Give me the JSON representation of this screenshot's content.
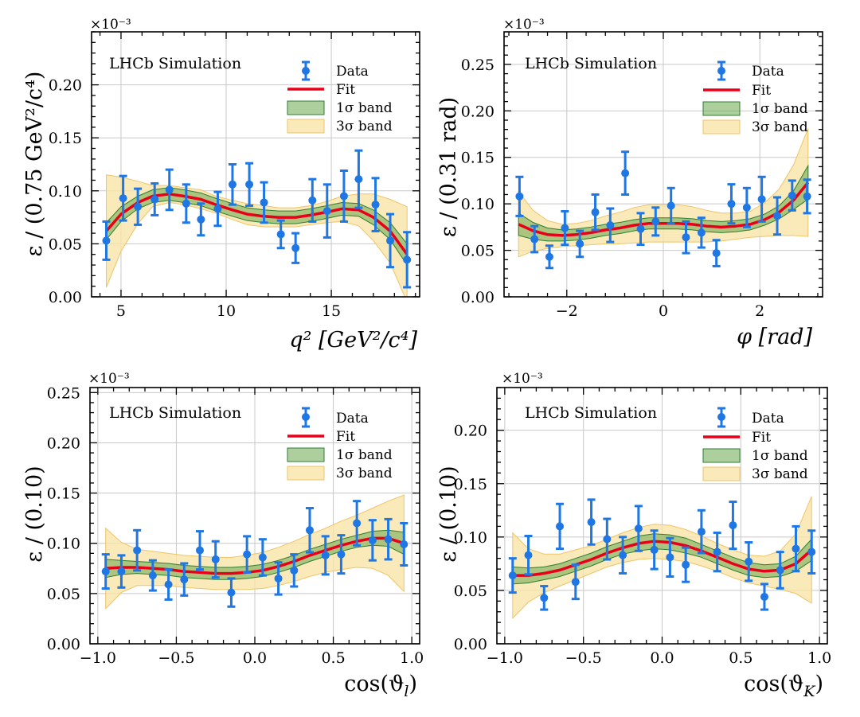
{
  "colors": {
    "data": "#1f77e4",
    "fit": "#e8001a",
    "band1_fill": "#6aa84f",
    "band1_edge": "#2e7d32",
    "band3_fill": "#f9e3a8",
    "band3_edge": "#efc46a",
    "grid": "#c8c8c8"
  },
  "chart_data": [
    {
      "type": "scatter",
      "panel": "top-left",
      "watermark": "LHCb Simulation",
      "sci_label": "×10⁻³",
      "ylabel": "ε / (0.75 GeV²/c⁴)",
      "xlabel": "q² [GeV²/c⁴]",
      "xlim": [
        3.6,
        19.2
      ],
      "ylim": [
        0,
        0.25
      ],
      "xticks": [
        5,
        10,
        15
      ],
      "xtick_labels": [
        "5",
        "10",
        "15"
      ],
      "yticks": [
        0,
        0.05,
        0.1,
        0.15,
        0.2
      ],
      "ytick_labels": [
        "0.00",
        "0.05",
        "0.10",
        "0.15",
        "0.20"
      ],
      "legend": {
        "position": "top-right",
        "entries": [
          "Data",
          "Fit",
          "1σ band",
          "3σ band"
        ]
      },
      "data": {
        "x": [
          4.3,
          5.1,
          5.8,
          6.6,
          7.3,
          8.1,
          8.8,
          9.6,
          10.3,
          11.1,
          11.8,
          12.6,
          13.3,
          14.1,
          14.8,
          15.6,
          16.3,
          17.1,
          17.8,
          18.6
        ],
        "y": [
          0.053,
          0.093,
          0.085,
          0.092,
          0.101,
          0.088,
          0.073,
          0.083,
          0.106,
          0.106,
          0.089,
          0.059,
          0.046,
          0.091,
          0.081,
          0.095,
          0.111,
          0.087,
          0.053,
          0.035
        ],
        "err": [
          0.018,
          0.021,
          0.017,
          0.015,
          0.019,
          0.018,
          0.015,
          0.016,
          0.019,
          0.02,
          0.019,
          0.013,
          0.014,
          0.02,
          0.025,
          0.024,
          0.027,
          0.025,
          0.025,
          0.026
        ]
      },
      "fit": {
        "x": [
          4.3,
          5.0,
          5.8,
          6.5,
          7.3,
          8.0,
          8.8,
          9.5,
          10.3,
          11.0,
          11.8,
          12.5,
          13.3,
          14.0,
          14.8,
          15.5,
          16.3,
          17.0,
          17.8,
          18.6
        ],
        "y": [
          0.062,
          0.078,
          0.089,
          0.095,
          0.097,
          0.095,
          0.092,
          0.087,
          0.082,
          0.078,
          0.076,
          0.075,
          0.075,
          0.077,
          0.08,
          0.083,
          0.082,
          0.075,
          0.062,
          0.04
        ],
        "sigma1": [
          0.008,
          0.007,
          0.006,
          0.006,
          0.006,
          0.006,
          0.006,
          0.006,
          0.006,
          0.006,
          0.006,
          0.006,
          0.006,
          0.006,
          0.006,
          0.006,
          0.006,
          0.007,
          0.008,
          0.01
        ],
        "sigma3": [
          0.053,
          0.035,
          0.02,
          0.01,
          0.008,
          0.008,
          0.009,
          0.008,
          0.009,
          0.01,
          0.01,
          0.009,
          0.009,
          0.009,
          0.01,
          0.012,
          0.015,
          0.022,
          0.03,
          0.045
        ]
      }
    },
    {
      "type": "scatter",
      "panel": "top-right",
      "watermark": "LHCb Simulation",
      "sci_label": "×10⁻³",
      "ylabel": "ε / (0.31 rad)",
      "xlabel": "φ [rad]",
      "xlim": [
        -3.3,
        3.3
      ],
      "ylim": [
        0,
        0.285
      ],
      "xticks": [
        -2,
        0,
        2
      ],
      "xtick_labels": [
        "−2",
        "0",
        "2"
      ],
      "yticks": [
        0,
        0.05,
        0.1,
        0.15,
        0.2,
        0.25
      ],
      "ytick_labels": [
        "0.00",
        "0.05",
        "0.10",
        "0.15",
        "0.20",
        "0.25"
      ],
      "legend": {
        "position": "top-right",
        "entries": [
          "Data",
          "Fit",
          "1σ band",
          "3σ band"
        ]
      },
      "data": {
        "x": [
          -2.98,
          -2.67,
          -2.36,
          -2.04,
          -1.73,
          -1.41,
          -1.1,
          -0.79,
          -0.47,
          -0.16,
          0.16,
          0.47,
          0.79,
          1.1,
          1.41,
          1.73,
          2.04,
          2.36,
          2.67,
          2.98
        ],
        "y": [
          0.108,
          0.062,
          0.043,
          0.074,
          0.057,
          0.091,
          0.077,
          0.133,
          0.073,
          0.081,
          0.098,
          0.064,
          0.069,
          0.047,
          0.1,
          0.096,
          0.105,
          0.087,
          0.109,
          0.108
        ],
        "err": [
          0.021,
          0.014,
          0.012,
          0.018,
          0.014,
          0.019,
          0.018,
          0.023,
          0.017,
          0.015,
          0.019,
          0.017,
          0.016,
          0.014,
          0.021,
          0.021,
          0.024,
          0.02,
          0.016,
          0.018
        ]
      },
      "fit": {
        "x": [
          -3.0,
          -2.7,
          -2.4,
          -2.1,
          -1.8,
          -1.5,
          -1.2,
          -0.9,
          -0.6,
          -0.3,
          0.0,
          0.3,
          0.6,
          0.9,
          1.2,
          1.5,
          1.8,
          2.1,
          2.4,
          2.7,
          3.0
        ],
        "y": [
          0.078,
          0.071,
          0.067,
          0.066,
          0.067,
          0.069,
          0.072,
          0.074,
          0.077,
          0.079,
          0.079,
          0.079,
          0.078,
          0.076,
          0.075,
          0.076,
          0.078,
          0.083,
          0.091,
          0.104,
          0.123
        ],
        "sigma1": [
          0.012,
          0.009,
          0.007,
          0.006,
          0.006,
          0.006,
          0.006,
          0.006,
          0.006,
          0.006,
          0.006,
          0.006,
          0.006,
          0.006,
          0.006,
          0.006,
          0.006,
          0.006,
          0.007,
          0.01,
          0.018
        ],
        "sigma3": [
          0.035,
          0.022,
          0.015,
          0.012,
          0.012,
          0.013,
          0.015,
          0.017,
          0.019,
          0.02,
          0.02,
          0.02,
          0.019,
          0.017,
          0.015,
          0.014,
          0.014,
          0.018,
          0.025,
          0.038,
          0.058
        ]
      }
    },
    {
      "type": "scatter",
      "panel": "bottom-left",
      "watermark": "LHCb Simulation",
      "sci_label": "×10⁻³",
      "ylabel": "ε / (0.10)",
      "xlabel": "cos(ϑ",
      "xlabel_sub": "l",
      "xlabel_close": ")",
      "xlim": [
        -1.05,
        1.05
      ],
      "ylim": [
        0,
        0.255
      ],
      "xticks": [
        -1.0,
        -0.5,
        0.0,
        0.5,
        1.0
      ],
      "xtick_labels": [
        "−1.0",
        "−0.5",
        "0.0",
        "0.5",
        "1.0"
      ],
      "yticks": [
        0,
        0.05,
        0.1,
        0.15,
        0.2,
        0.25
      ],
      "ytick_labels": [
        "0.00",
        "0.05",
        "0.10",
        "0.15",
        "0.20",
        "0.25"
      ],
      "legend": {
        "position": "top-right",
        "entries": [
          "Data",
          "Fit",
          "1σ band",
          "3σ band"
        ]
      },
      "data": {
        "x": [
          -0.95,
          -0.85,
          -0.75,
          -0.65,
          -0.55,
          -0.45,
          -0.35,
          -0.25,
          -0.15,
          -0.05,
          0.05,
          0.15,
          0.25,
          0.35,
          0.45,
          0.55,
          0.65,
          0.75,
          0.85,
          0.95
        ],
        "y": [
          0.072,
          0.072,
          0.093,
          0.068,
          0.059,
          0.064,
          0.093,
          0.084,
          0.051,
          0.089,
          0.086,
          0.065,
          0.073,
          0.113,
          0.088,
          0.089,
          0.12,
          0.103,
          0.104,
          0.099
        ],
        "err": [
          0.017,
          0.016,
          0.02,
          0.015,
          0.015,
          0.016,
          0.019,
          0.018,
          0.014,
          0.018,
          0.018,
          0.016,
          0.016,
          0.022,
          0.019,
          0.019,
          0.022,
          0.02,
          0.02,
          0.021
        ]
      },
      "fit": {
        "x": [
          -0.95,
          -0.85,
          -0.75,
          -0.65,
          -0.55,
          -0.45,
          -0.35,
          -0.25,
          -0.15,
          -0.05,
          0.05,
          0.15,
          0.25,
          0.35,
          0.45,
          0.55,
          0.65,
          0.75,
          0.85,
          0.95
        ],
        "y": [
          0.075,
          0.076,
          0.076,
          0.075,
          0.074,
          0.072,
          0.071,
          0.07,
          0.07,
          0.071,
          0.073,
          0.077,
          0.082,
          0.088,
          0.093,
          0.098,
          0.102,
          0.105,
          0.105,
          0.1
        ],
        "sigma1": [
          0.009,
          0.007,
          0.006,
          0.006,
          0.006,
          0.006,
          0.006,
          0.006,
          0.006,
          0.006,
          0.006,
          0.006,
          0.006,
          0.006,
          0.006,
          0.006,
          0.006,
          0.007,
          0.008,
          0.011
        ],
        "sigma3": [
          0.04,
          0.025,
          0.018,
          0.017,
          0.016,
          0.016,
          0.016,
          0.016,
          0.016,
          0.017,
          0.018,
          0.019,
          0.02,
          0.021,
          0.022,
          0.024,
          0.026,
          0.03,
          0.037,
          0.048
        ]
      }
    },
    {
      "type": "scatter",
      "panel": "bottom-right",
      "watermark": "LHCb Simulation",
      "sci_label": "×10⁻³",
      "ylabel": "ε / (0.10)",
      "xlabel": "cos(ϑ",
      "xlabel_sub": "K",
      "xlabel_close": ")",
      "xlim": [
        -1.05,
        1.05
      ],
      "ylim": [
        0,
        0.24
      ],
      "xticks": [
        -1.0,
        -0.5,
        0.0,
        0.5,
        1.0
      ],
      "xtick_labels": [
        "−1.0",
        "−0.5",
        "0.0",
        "0.5",
        "1.0"
      ],
      "yticks": [
        0,
        0.05,
        0.1,
        0.15,
        0.2
      ],
      "ytick_labels": [
        "0.00",
        "0.05",
        "0.10",
        "0.15",
        "0.20"
      ],
      "legend": {
        "position": "top-right",
        "entries": [
          "Data",
          "Fit",
          "1σ band",
          "3σ band"
        ]
      },
      "data": {
        "x": [
          -0.95,
          -0.85,
          -0.75,
          -0.65,
          -0.55,
          -0.45,
          -0.35,
          -0.25,
          -0.15,
          -0.05,
          0.05,
          0.15,
          0.25,
          0.35,
          0.45,
          0.55,
          0.65,
          0.75,
          0.85,
          0.95
        ],
        "y": [
          0.064,
          0.083,
          0.043,
          0.11,
          0.058,
          0.114,
          0.098,
          0.083,
          0.108,
          0.088,
          0.081,
          0.074,
          0.105,
          0.086,
          0.111,
          0.077,
          0.044,
          0.069,
          0.089,
          0.086
        ],
        "err": [
          0.016,
          0.018,
          0.011,
          0.021,
          0.016,
          0.021,
          0.019,
          0.017,
          0.021,
          0.018,
          0.018,
          0.016,
          0.02,
          0.018,
          0.022,
          0.018,
          0.012,
          0.017,
          0.021,
          0.02
        ]
      },
      "fit": {
        "x": [
          -0.95,
          -0.85,
          -0.75,
          -0.65,
          -0.55,
          -0.45,
          -0.35,
          -0.25,
          -0.15,
          -0.05,
          0.05,
          0.15,
          0.25,
          0.35,
          0.45,
          0.55,
          0.65,
          0.75,
          0.85,
          0.95
        ],
        "y": [
          0.064,
          0.064,
          0.066,
          0.069,
          0.074,
          0.079,
          0.085,
          0.09,
          0.094,
          0.096,
          0.095,
          0.092,
          0.087,
          0.081,
          0.075,
          0.07,
          0.068,
          0.069,
          0.075,
          0.088
        ],
        "sigma1": [
          0.008,
          0.007,
          0.006,
          0.006,
          0.006,
          0.006,
          0.006,
          0.006,
          0.007,
          0.007,
          0.007,
          0.007,
          0.006,
          0.006,
          0.006,
          0.006,
          0.006,
          0.006,
          0.007,
          0.01
        ],
        "sigma3": [
          0.04,
          0.025,
          0.018,
          0.015,
          0.014,
          0.013,
          0.013,
          0.014,
          0.015,
          0.016,
          0.016,
          0.015,
          0.014,
          0.013,
          0.013,
          0.013,
          0.014,
          0.018,
          0.028,
          0.05
        ]
      }
    }
  ]
}
